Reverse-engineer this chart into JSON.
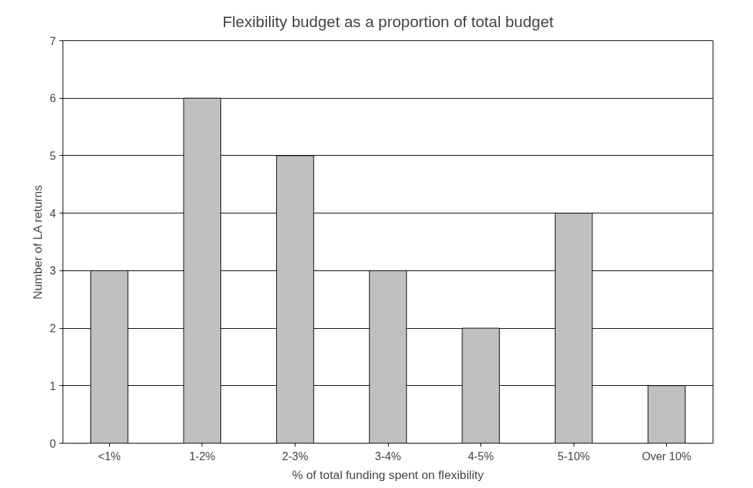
{
  "chart_data": {
    "type": "bar",
    "title": "Flexibility budget as a proportion of total budget",
    "xlabel": "% of total funding spent on flexibility",
    "ylabel": "Number of LA returns",
    "categories": [
      "<1%",
      "1-2%",
      "2-3%",
      "3-4%",
      "4-5%",
      "5-10%",
      "Over 10%"
    ],
    "values": [
      3,
      6,
      5,
      3,
      2,
      4,
      1
    ],
    "color": "#c0c0c0",
    "ylim": [
      0,
      7
    ],
    "yticks": [
      0,
      1,
      2,
      3,
      4,
      5,
      6,
      7
    ],
    "grid": "y"
  }
}
